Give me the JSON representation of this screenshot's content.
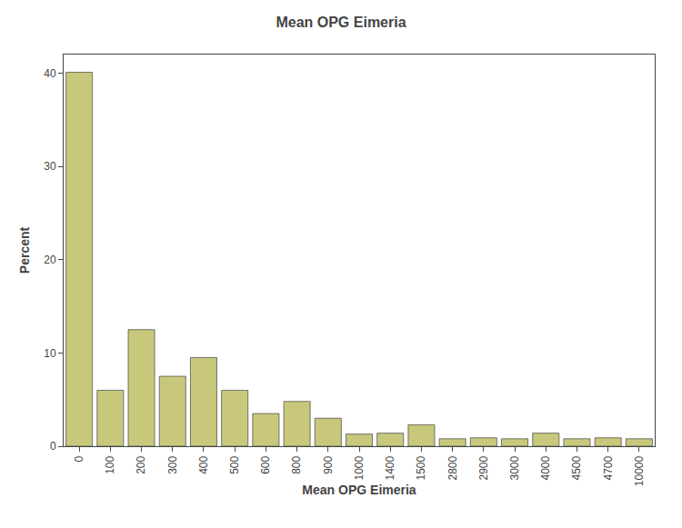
{
  "chart_data": {
    "type": "bar",
    "title": "Mean OPG Eimeria",
    "xlabel": "Mean OPG Eimeria",
    "ylabel": "Percent",
    "categories": [
      "0",
      "100",
      "200",
      "300",
      "400",
      "500",
      "600",
      "800",
      "900",
      "1000",
      "1400",
      "1500",
      "2800",
      "2900",
      "3000",
      "4000",
      "4500",
      "4700",
      "10000"
    ],
    "values": [
      40.1,
      6.0,
      12.5,
      7.5,
      9.5,
      6.0,
      3.5,
      4.8,
      3.0,
      1.3,
      1.4,
      2.3,
      0.8,
      0.9,
      0.8,
      1.4,
      0.8,
      0.9,
      0.8
    ],
    "color": "#c8c87d",
    "ylim": [
      0,
      42
    ],
    "yticks": [
      0,
      10,
      20,
      30,
      40
    ],
    "grid": false
  }
}
